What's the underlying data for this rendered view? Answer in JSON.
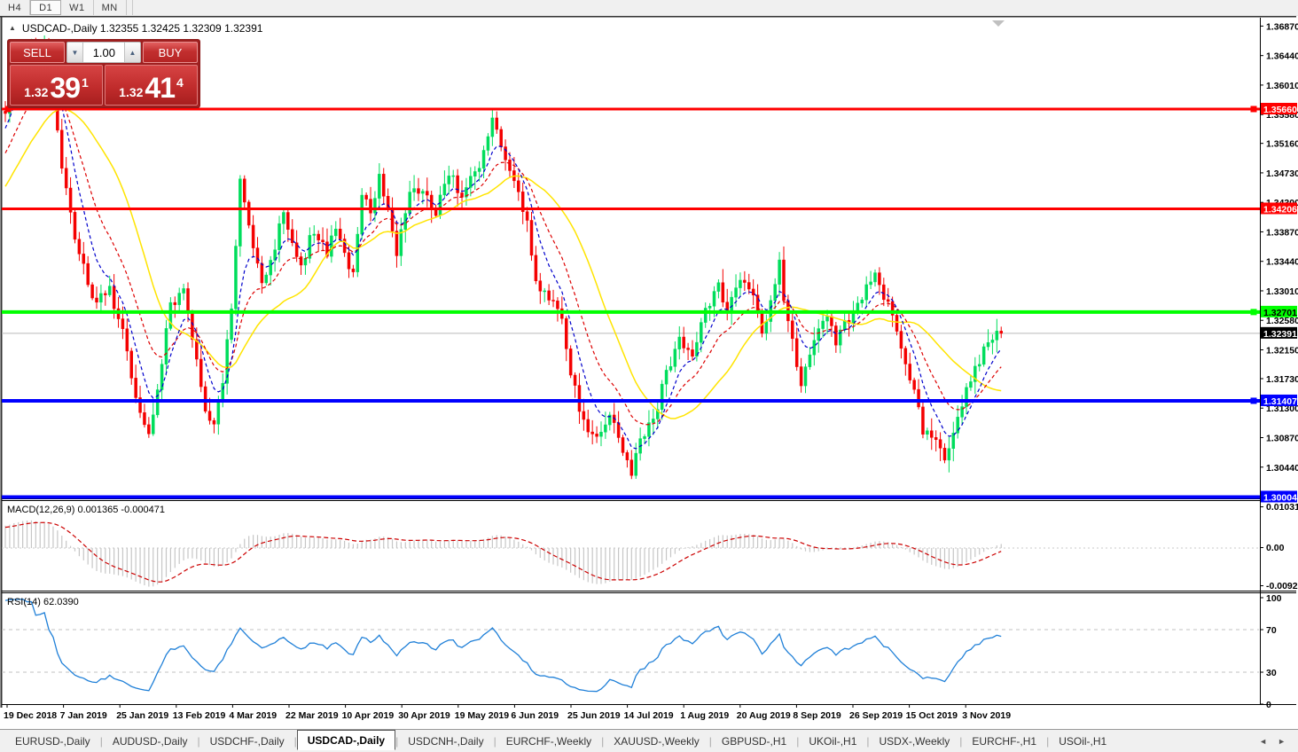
{
  "toolbar": {
    "timeframes": [
      {
        "label": "H4",
        "active": false
      },
      {
        "label": "D1",
        "active": true
      },
      {
        "label": "W1",
        "active": false
      },
      {
        "label": "MN",
        "active": false
      }
    ]
  },
  "chart": {
    "title": {
      "text": "USDCAD-,Daily 1.32355 1.32425 1.32309 1.32391"
    },
    "one_click": {
      "sell_label": "SELL",
      "buy_label": "BUY",
      "volume": "1.00",
      "sell": {
        "prefix": "1.32",
        "big": "39",
        "sup": "1"
      },
      "buy": {
        "prefix": "1.32",
        "big": "41",
        "sup": "4"
      }
    }
  },
  "chart_data": {
    "type": "candlestick",
    "symbol": "USDCAD-,Daily",
    "last_quote": {
      "open": "1.32355",
      "high": "1.32425",
      "low": "1.32309",
      "close": "1.32391"
    },
    "price_ticks": [
      "1.36870",
      "1.36440",
      "1.36010",
      "1.35580",
      "1.35160",
      "1.34730",
      "1.34300",
      "1.33870",
      "1.33440",
      "1.33010",
      "1.32580",
      "1.32150",
      "1.31730",
      "1.31300",
      "1.30870",
      "1.30440"
    ],
    "date_ticks": [
      "19 Dec 2018",
      "7 Jan 2019",
      "25 Jan 2019",
      "13 Feb 2019",
      "4 Mar 2019",
      "22 Mar 2019",
      "10 Apr 2019",
      "30 Apr 2019",
      "19 May 2019",
      "6 Jun 2019",
      "25 Jun 2019",
      "14 Jul 2019",
      "1 Aug 2019",
      "20 Aug 2019",
      "8 Sep 2019",
      "26 Sep 2019",
      "15 Oct 2019",
      "3 Nov 2019"
    ],
    "levels": [
      {
        "value": 1.3566,
        "label": "1.35660",
        "color": "#ff0000",
        "text": "#ffffff",
        "width": 3,
        "handles": [
          "left",
          "right"
        ]
      },
      {
        "value": 1.34206,
        "label": "1.34206",
        "color": "#ff0000",
        "text": "#ffffff",
        "width": 3,
        "handles": []
      },
      {
        "value": 1.32701,
        "label": "1.32701",
        "color": "#00ff00",
        "text": "#000000",
        "width": 4,
        "handles": [
          "right"
        ]
      },
      {
        "value": 1.31407,
        "label": "1.31407",
        "color": "#0000ff",
        "text": "#ffffff",
        "width": 4,
        "handles": [
          "right"
        ]
      },
      {
        "value": 1.30004,
        "label": "1.30004",
        "color": "#0000ff",
        "text": "#ffffff",
        "width": 4,
        "handles": []
      }
    ],
    "current_price": 1.32391,
    "current_price_label": "1.32391",
    "candle_count": 230,
    "close_path_anchors": [
      [
        0,
        1.356
      ],
      [
        2,
        1.362
      ],
      [
        5,
        1.3655
      ],
      [
        7,
        1.363
      ],
      [
        9,
        1.366
      ],
      [
        11,
        1.359
      ],
      [
        13,
        1.348
      ],
      [
        16,
        1.338
      ],
      [
        20,
        1.329
      ],
      [
        24,
        1.33
      ],
      [
        27,
        1.324
      ],
      [
        30,
        1.315
      ],
      [
        33,
        1.3095
      ],
      [
        35,
        1.316
      ],
      [
        38,
        1.328
      ],
      [
        41,
        1.33
      ],
      [
        44,
        1.32
      ],
      [
        46,
        1.313
      ],
      [
        48,
        1.31
      ],
      [
        50,
        1.317
      ],
      [
        52,
        1.328
      ],
      [
        54,
        1.3465
      ],
      [
        56,
        1.339
      ],
      [
        59,
        1.332
      ],
      [
        62,
        1.336
      ],
      [
        64,
        1.342
      ],
      [
        66,
        1.337
      ],
      [
        68,
        1.334
      ],
      [
        71,
        1.339
      ],
      [
        74,
        1.336
      ],
      [
        76,
        1.34
      ],
      [
        78,
        1.335
      ],
      [
        80,
        1.333
      ],
      [
        82,
        1.3445
      ],
      [
        84,
        1.342
      ],
      [
        86,
        1.347
      ],
      [
        88,
        1.342
      ],
      [
        90,
        1.336
      ],
      [
        93,
        1.345
      ],
      [
        96,
        1.344
      ],
      [
        99,
        1.342
      ],
      [
        102,
        1.347
      ],
      [
        105,
        1.344
      ],
      [
        108,
        1.347
      ],
      [
        110,
        1.35
      ],
      [
        112,
        1.3555
      ],
      [
        114,
        1.352
      ],
      [
        116,
        1.347
      ],
      [
        118,
        1.344
      ],
      [
        120,
        1.34
      ],
      [
        122,
        1.332
      ],
      [
        125,
        1.329
      ],
      [
        128,
        1.327
      ],
      [
        130,
        1.318
      ],
      [
        133,
        1.311
      ],
      [
        136,
        1.308
      ],
      [
        139,
        1.312
      ],
      [
        141,
        1.308
      ],
      [
        144,
        1.303
      ],
      [
        146,
        1.308
      ],
      [
        149,
        1.311
      ],
      [
        152,
        1.318
      ],
      [
        155,
        1.323
      ],
      [
        158,
        1.321
      ],
      [
        161,
        1.327
      ],
      [
        164,
        1.331
      ],
      [
        166,
        1.327
      ],
      [
        169,
        1.332
      ],
      [
        172,
        1.33
      ],
      [
        174,
        1.324
      ],
      [
        176,
        1.329
      ],
      [
        178,
        1.334
      ],
      [
        180,
        1.325
      ],
      [
        183,
        1.317
      ],
      [
        186,
        1.323
      ],
      [
        189,
        1.327
      ],
      [
        191,
        1.323
      ],
      [
        194,
        1.326
      ],
      [
        197,
        1.329
      ],
      [
        200,
        1.333
      ],
      [
        202,
        1.329
      ],
      [
        205,
        1.325
      ],
      [
        208,
        1.318
      ],
      [
        211,
        1.31
      ],
      [
        214,
        1.308
      ],
      [
        216,
        1.3055
      ],
      [
        218,
        1.309
      ],
      [
        220,
        1.314
      ],
      [
        222,
        1.317
      ],
      [
        224,
        1.32
      ],
      [
        226,
        1.323
      ],
      [
        228,
        1.3245
      ],
      [
        229,
        1.32391
      ]
    ],
    "indicator_warmup": {
      "bars": 30,
      "from": 1.328,
      "to": 1.356
    },
    "indicators": {
      "macd": {
        "display": "MACD(12,26,9) 0.001365 -0.000471",
        "scale_max": "0.010311",
        "scale_mid": "0.00",
        "scale_min": "-0.009203",
        "fast": 12,
        "slow": 26,
        "signal": 9
      },
      "rsi": {
        "display": "RSI(14) 62.0390",
        "period": 14,
        "scale": [
          "100",
          "70",
          "30",
          "0"
        ],
        "dashed_levels": [
          70,
          30
        ]
      }
    },
    "colors": {
      "up": "#00dd5c",
      "down": "#f40000",
      "ma_fast": "#0000cc",
      "ma_mid": "#dd0000",
      "ma_slow": "#ffe400",
      "macd_bar": "#c6c6c6",
      "macd_signal": "#cc0000",
      "rsi_line": "#2080d8",
      "current_line": "#b9b9b9"
    }
  },
  "tabs": {
    "items": [
      {
        "label": "EURUSD-,Daily",
        "active": false
      },
      {
        "label": "AUDUSD-,Daily",
        "active": false
      },
      {
        "label": "USDCHF-,Daily",
        "active": false
      },
      {
        "label": "USDCAD-,Daily",
        "active": true
      },
      {
        "label": "USDCNH-,Daily",
        "active": false
      },
      {
        "label": "EURCHF-,Weekly",
        "active": false
      },
      {
        "label": "XAUUSD-,Weekly",
        "active": false
      },
      {
        "label": "GBPUSD-,H1",
        "active": false
      },
      {
        "label": "UKOil-,H1",
        "active": false
      },
      {
        "label": "USDX-,Weekly",
        "active": false
      },
      {
        "label": "EURCHF-,H1",
        "active": false
      },
      {
        "label": "USOil-,H1",
        "active": false
      }
    ],
    "scroll_left": "◄",
    "scroll_right": "►"
  }
}
